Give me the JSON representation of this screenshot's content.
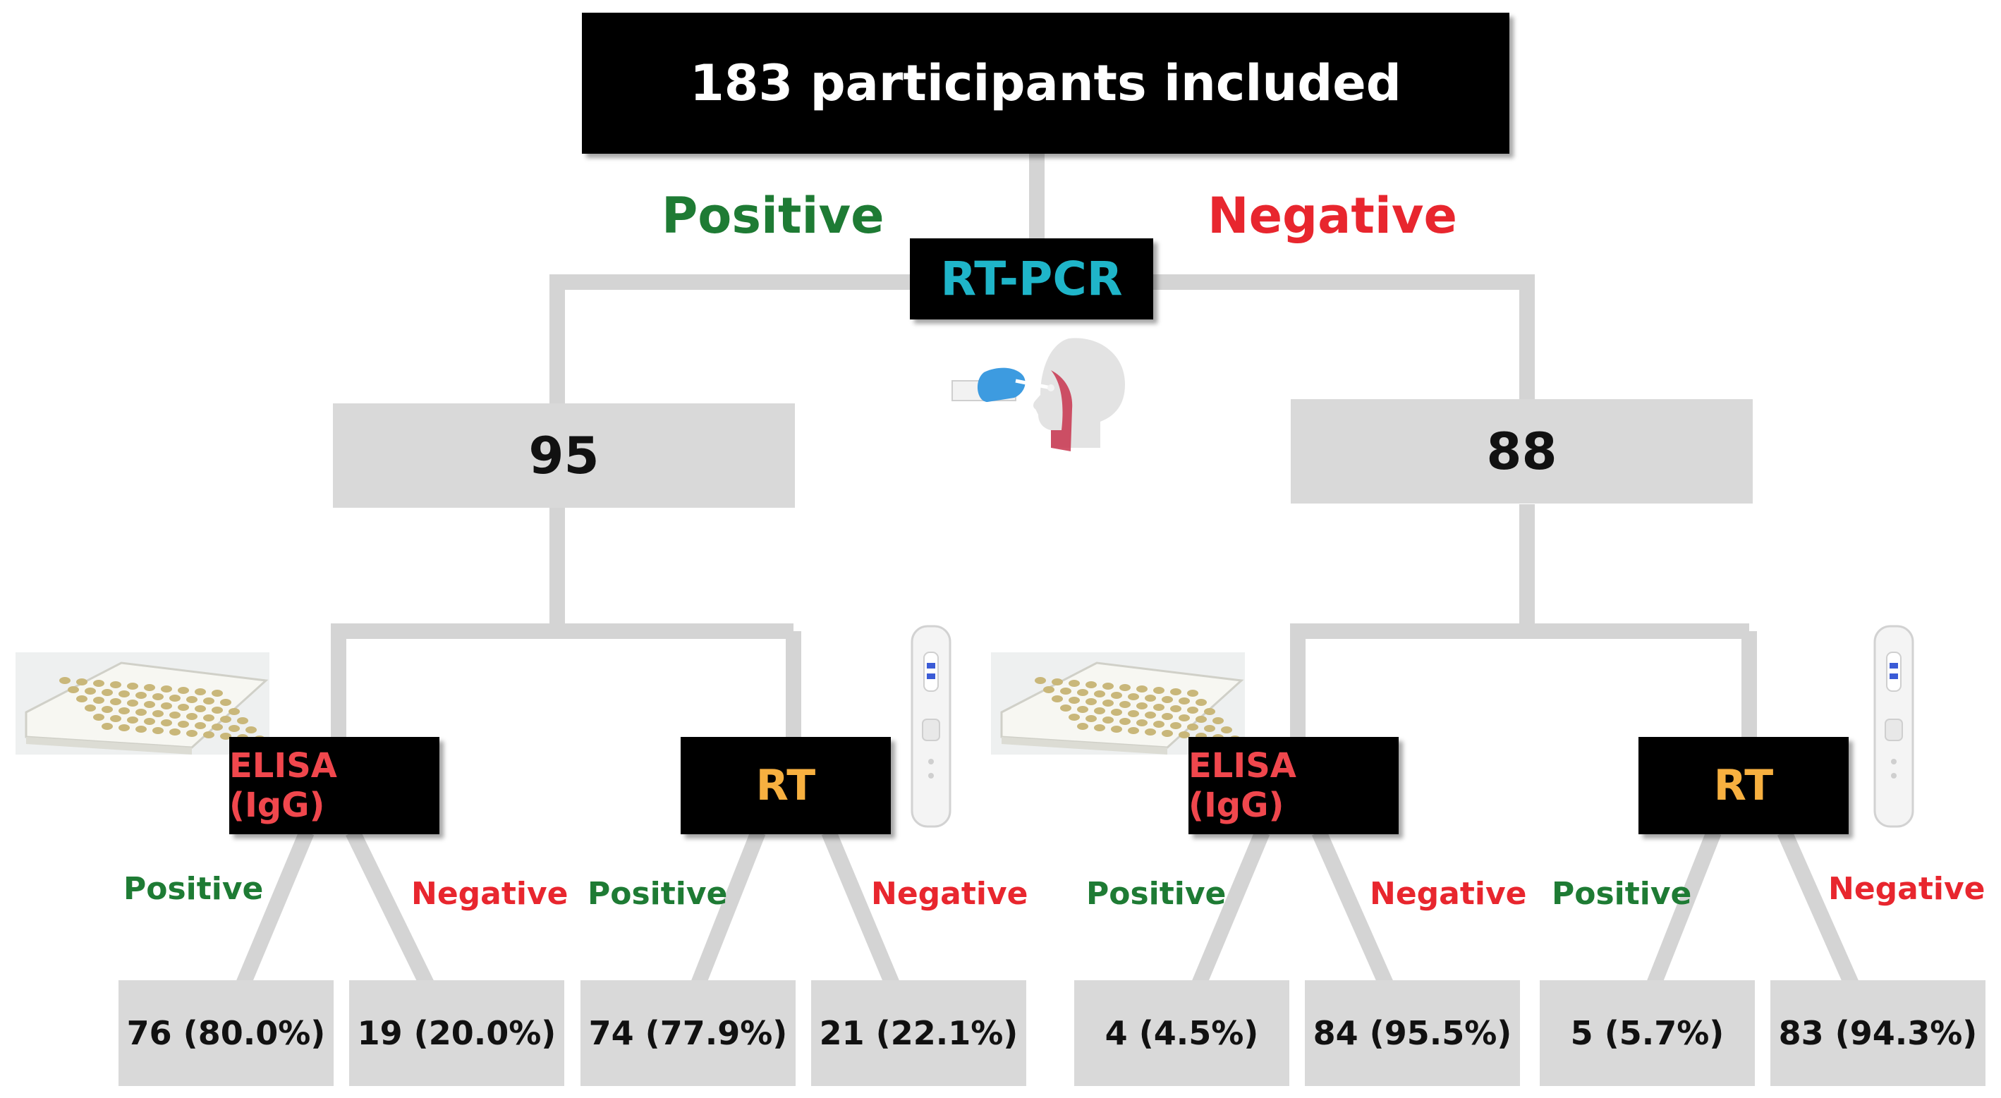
{
  "colors": {
    "positive": "#1e7b34",
    "negative": "#e8262e",
    "rtpcr_text": "#1fb5c9",
    "elisa_text": "#f0474d",
    "rt_text": "#f7b040",
    "connector": "#d4d4d4"
  },
  "root": {
    "label": "183 participants included"
  },
  "rtpcr": {
    "label": "RT-PCR",
    "positive_label": "Positive",
    "negative_label": "Negative"
  },
  "groups": {
    "positive": {
      "count": "95",
      "elisa": {
        "label": "ELISA (IgG)",
        "positive_label": "Positive",
        "negative_label": "Negative",
        "positive_result": "76 (80.0%)",
        "negative_result": "19 (20.0%)"
      },
      "rt": {
        "label": "RT",
        "positive_label": "Positive",
        "negative_label": "Negative",
        "positive_result": "74 (77.9%)",
        "negative_result": "21 (22.1%)"
      }
    },
    "negative": {
      "count": "88",
      "elisa": {
        "label": "ELISA (IgG)",
        "positive_label": "Positive",
        "negative_label": "Negative",
        "positive_result": "4 (4.5%)",
        "negative_result": "84 (95.5%)"
      },
      "rt": {
        "label": "RT",
        "positive_label": "Positive",
        "negative_label": "Negative",
        "positive_result": "5 (5.7%)",
        "negative_result": "83 (94.3%)"
      }
    }
  },
  "illustrations": [
    "nasal-swab-icon",
    "elisa-plate-icon",
    "rapid-test-cassette-icon"
  ]
}
